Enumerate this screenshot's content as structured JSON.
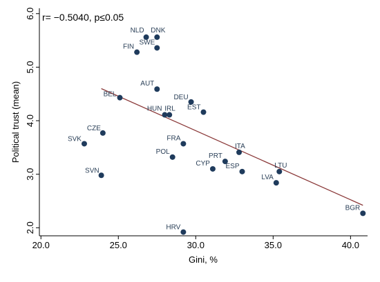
{
  "chart_data": {
    "type": "scatter",
    "annotation": "r= −0.5040, p≤0.05",
    "xlabel": "Gini, %",
    "ylabel": "Political trust (mean)",
    "xlim": [
      19.9,
      41.1
    ],
    "ylim": [
      1.85,
      6.1
    ],
    "xticks": [
      20,
      25,
      30,
      35,
      40
    ],
    "xtick_labels": [
      "20.0",
      "25.0",
      "30.0",
      "35.0",
      "40.0"
    ],
    "yticks": [
      2,
      3,
      4,
      5,
      6
    ],
    "ytick_labels": [
      "2.0",
      "3.0",
      "4.0",
      "5.0",
      "6.0"
    ],
    "grid": false,
    "legend": false,
    "colors": {
      "point": "#1f3b5c",
      "fit_line": "#8b3a3a",
      "label": "#2a3f57",
      "axis": "#000000"
    },
    "points": [
      {
        "label": "NLD",
        "x": 26.8,
        "y": 5.56
      },
      {
        "label": "DNK",
        "x": 27.5,
        "y": 5.56
      },
      {
        "label": "SWE",
        "x": 27.5,
        "y": 5.36
      },
      {
        "label": "FIN",
        "x": 26.2,
        "y": 5.28
      },
      {
        "label": "AUT",
        "x": 27.5,
        "y": 4.59
      },
      {
        "label": "BEL",
        "x": 25.1,
        "y": 4.43
      },
      {
        "label": "DEU",
        "x": 29.7,
        "y": 4.35
      },
      {
        "label": "EST",
        "x": 30.5,
        "y": 4.16
      },
      {
        "label": "HUN",
        "x": 28.0,
        "y": 4.11
      },
      {
        "label": "IRL",
        "x": 28.3,
        "y": 4.11
      },
      {
        "label": "CZE",
        "x": 24.0,
        "y": 3.77
      },
      {
        "label": "SVK",
        "x": 22.8,
        "y": 3.57
      },
      {
        "label": "FRA",
        "x": 29.2,
        "y": 3.57
      },
      {
        "label": "ITA",
        "x": 32.8,
        "y": 3.41
      },
      {
        "label": "POL",
        "x": 28.5,
        "y": 3.32
      },
      {
        "label": "PRT",
        "x": 31.9,
        "y": 3.24
      },
      {
        "label": "CYP",
        "x": 31.1,
        "y": 3.1
      },
      {
        "label": "ESP",
        "x": 33.0,
        "y": 3.05
      },
      {
        "label": "LTU",
        "x": 35.4,
        "y": 3.05
      },
      {
        "label": "SVN",
        "x": 23.9,
        "y": 2.98
      },
      {
        "label": "LVA",
        "x": 35.2,
        "y": 2.84
      },
      {
        "label": "BGR",
        "x": 40.8,
        "y": 2.27
      },
      {
        "label": "HRV",
        "x": 29.2,
        "y": 1.92
      }
    ],
    "fit_line": {
      "x": [
        23.9,
        40.8
      ],
      "y": [
        4.6,
        2.42
      ]
    }
  }
}
